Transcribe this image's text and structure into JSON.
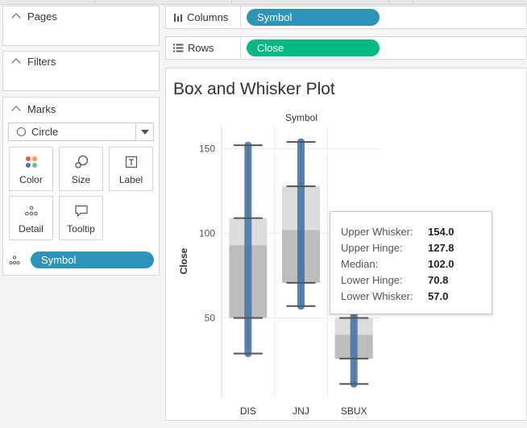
{
  "cards": {
    "pages": {
      "title": "Pages"
    },
    "filters": {
      "title": "Filters"
    },
    "marks": {
      "title": "Marks",
      "mark_type": "Circle",
      "buttons": {
        "color": "Color",
        "size": "Size",
        "label": "Label",
        "detail": "Detail",
        "tooltip": "Tooltip"
      },
      "detail_pill": "Symbol"
    }
  },
  "shelves": {
    "columns": {
      "label": "Columns",
      "pill": "Symbol"
    },
    "rows": {
      "label": "Rows",
      "pill": "Close"
    }
  },
  "view": {
    "title": "Box and Whisker Plot"
  },
  "tooltip": {
    "rows": [
      {
        "key": "Upper Whisker:",
        "value": "154.0"
      },
      {
        "key": "Upper Hinge:",
        "value": "127.8"
      },
      {
        "key": "Median:",
        "value": "102.0"
      },
      {
        "key": "Lower Hinge:",
        "value": "70.8"
      },
      {
        "key": "Lower Whisker:",
        "value": "57.0"
      }
    ]
  },
  "colors": {
    "accent": "#2f95b8",
    "rows_pill": "#06b882",
    "points": "#3f73a8"
  },
  "chart_data": {
    "type": "box",
    "title": "Box and Whisker Plot",
    "xlabel": "Symbol",
    "ylabel": "Close",
    "categories": [
      "DIS",
      "JNJ",
      "SBUX"
    ],
    "yticks": [
      50,
      100,
      150
    ],
    "ylim": [
      0,
      163
    ],
    "series": [
      {
        "whisker_low": 29,
        "hinge_low": 50,
        "median": 93,
        "hinge_high": 109,
        "whisker_high": 152,
        "points_min": 29,
        "points_max": 152
      },
      {
        "whisker_low": 57,
        "hinge_low": 70.8,
        "median": 102,
        "hinge_high": 127.8,
        "whisker_high": 154,
        "points_min": 57,
        "points_max": 154
      },
      {
        "whisker_low": 11,
        "hinge_low": 26,
        "median": 40,
        "hinge_high": 50,
        "whisker_high": 60,
        "points_min": 11,
        "points_max": 60
      }
    ]
  }
}
